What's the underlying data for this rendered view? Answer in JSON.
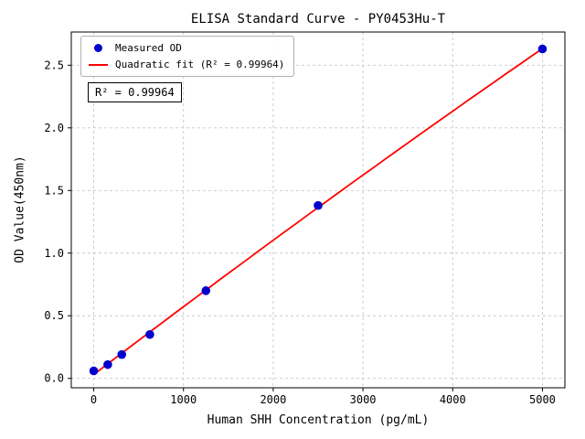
{
  "chart_data": {
    "type": "scatter",
    "title": "ELISA Standard Curve - PY0453Hu-T",
    "xlabel": "Human SHH Concentration (pg/mL)",
    "ylabel": "OD Value(450nm)",
    "xlim": [
      -250,
      5250
    ],
    "ylim": [
      -0.075,
      2.765
    ],
    "x_ticks": [
      0,
      1000,
      2000,
      3000,
      4000,
      5000
    ],
    "x_tick_labels": [
      "0",
      "1000",
      "2000",
      "3000",
      "4000",
      "5000"
    ],
    "y_ticks": [
      0,
      0.5,
      1.0,
      1.5,
      2.0,
      2.5
    ],
    "y_tick_labels": [
      "0.0",
      "0.5",
      "1.0",
      "1.5",
      "2.0",
      "2.5"
    ],
    "grid": true,
    "legend_position": "upper left",
    "annotation": "R² = 0.99964",
    "series": [
      {
        "name": "Measured OD",
        "type": "scatter",
        "color": "#0000cd",
        "x": [
          0,
          156.25,
          312.5,
          625,
          1250,
          2500,
          5000
        ],
        "y": [
          0.06,
          0.11,
          0.19,
          0.35,
          0.7,
          1.38,
          2.63
        ]
      },
      {
        "name": "Quadratic fit (R² = 0.99964)",
        "type": "line",
        "color": "#ff0000",
        "fit": "quadratic",
        "r_squared": 0.99964,
        "coefficients": {
          "a": -5.12e-09,
          "b": 0.000546,
          "c": 0.031
        },
        "x_range": [
          0,
          5000
        ]
      }
    ]
  }
}
